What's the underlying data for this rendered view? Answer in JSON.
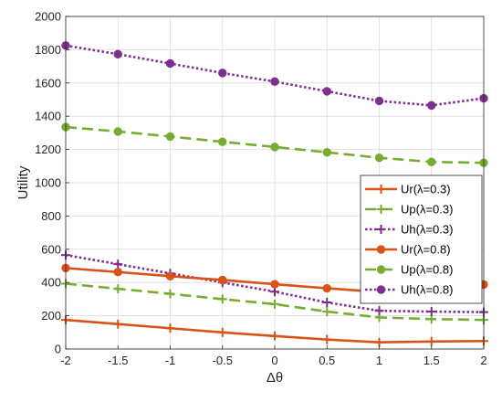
{
  "chart_data": {
    "type": "line",
    "xlabel": "Δθ",
    "ylabel": "Utility",
    "xlim": [
      -2,
      2
    ],
    "ylim": [
      0,
      2000
    ],
    "xticks": [
      -2,
      -1.5,
      -1,
      -0.5,
      0,
      0.5,
      1,
      1.5,
      2
    ],
    "xtick_labels": [
      "-2",
      "-1.5",
      "-1",
      "-0.5",
      "0",
      "0.5",
      "1",
      "1.5",
      "2"
    ],
    "yticks": [
      0,
      200,
      400,
      600,
      800,
      1000,
      1200,
      1400,
      1600,
      1800,
      2000
    ],
    "ytick_labels": [
      "0",
      "200",
      "400",
      "600",
      "800",
      "1000",
      "1200",
      "1400",
      "1600",
      "1800",
      "2000"
    ],
    "grid": true,
    "legend_position": "right",
    "x": [
      -2,
      -1.5,
      -1,
      -0.5,
      0,
      0.5,
      1,
      1.5,
      2
    ],
    "series": [
      {
        "name": "Ur(λ=0.3)",
        "values": [
          175,
          150,
          125,
          100,
          78,
          57,
          40,
          45,
          48
        ],
        "color": "#d95319",
        "dash": "solid",
        "marker": "plus"
      },
      {
        "name": "Up(λ=0.3)",
        "values": [
          393,
          362,
          332,
          300,
          270,
          225,
          190,
          180,
          175
        ],
        "color": "#77ac30",
        "dash": "dashed",
        "marker": "plus"
      },
      {
        "name": "Uh(λ=0.3)",
        "values": [
          565,
          510,
          455,
          400,
          345,
          280,
          230,
          225,
          222
        ],
        "color": "#7e2f8e",
        "dash": "dotted",
        "marker": "plus"
      },
      {
        "name": "Ur(λ=0.8)",
        "values": [
          487,
          463,
          438,
          415,
          390,
          365,
          343,
          340,
          388
        ],
        "color": "#d95319",
        "dash": "solid",
        "marker": "circle"
      },
      {
        "name": "Up(λ=0.8)",
        "values": [
          1335,
          1308,
          1278,
          1246,
          1215,
          1183,
          1150,
          1125,
          1120
        ],
        "color": "#77ac30",
        "dash": "dashed",
        "marker": "circle"
      },
      {
        "name": "Uh(λ=0.8)",
        "values": [
          1825,
          1773,
          1717,
          1660,
          1608,
          1550,
          1492,
          1465,
          1508
        ],
        "color": "#7e2f8e",
        "dash": "dotted",
        "marker": "circle"
      }
    ]
  }
}
